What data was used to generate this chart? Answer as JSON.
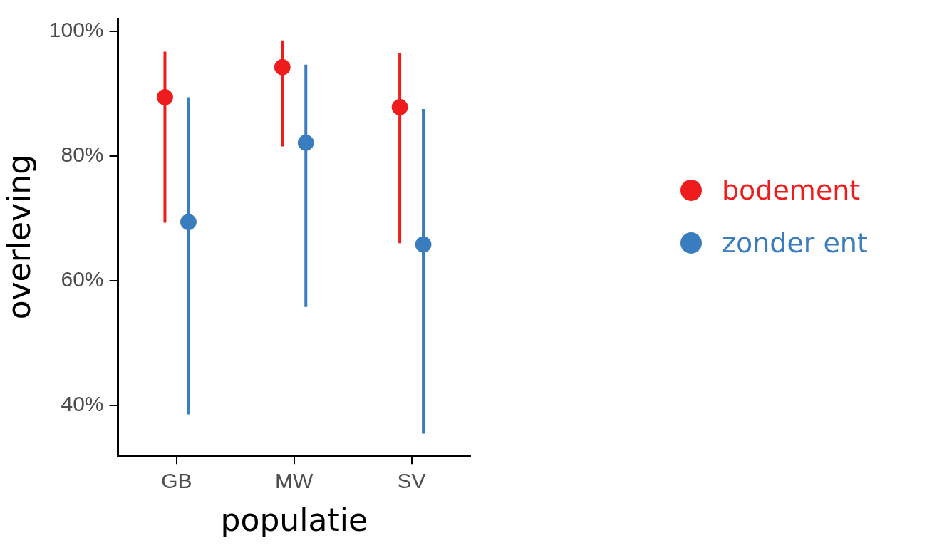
{
  "chart_data": {
    "type": "scatter",
    "xlabel": "populatie",
    "ylabel": "overleving",
    "categories": [
      "GB",
      "MW",
      "SV"
    ],
    "series": [
      {
        "name": "bodement",
        "color": "#ee1c1c",
        "values": [
          89.4,
          94.2,
          87.8
        ],
        "errors": [
          [
            69.3,
            96.7
          ],
          [
            81.5,
            98.5
          ],
          [
            66,
            96.5
          ]
        ]
      },
      {
        "name": "zonder ent",
        "color": "#3a7dbf",
        "values": [
          69.4,
          82.1,
          65.8
        ],
        "errors": [
          [
            38.6,
            89.4
          ],
          [
            55.8,
            94.6
          ],
          [
            35.5,
            87.5
          ]
        ]
      }
    ],
    "ylim": [
      32,
      102
    ],
    "yticks": [
      {
        "value": 40,
        "label": "40%"
      },
      {
        "value": 60,
        "label": "60%"
      },
      {
        "value": 80,
        "label": "80%"
      },
      {
        "value": 100,
        "label": "100%"
      }
    ],
    "grid": false,
    "legend": "right",
    "marker": "circle"
  }
}
